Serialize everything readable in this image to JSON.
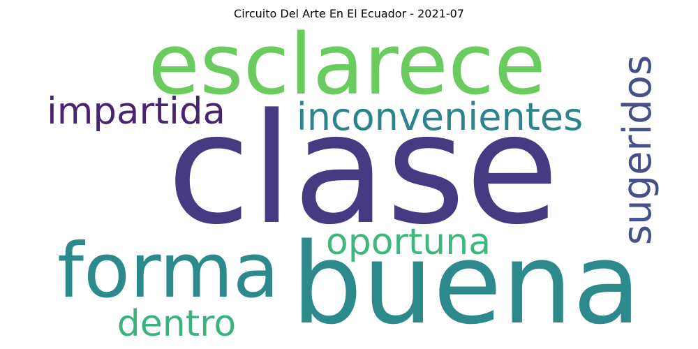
{
  "title": "Circuito Del Arte En El Ecuador - 2021-07",
  "words": [
    {
      "id": "clase",
      "text": "clase",
      "color": "#463a82"
    },
    {
      "id": "buena",
      "text": "buena",
      "color": "#2c8a8c"
    },
    {
      "id": "esclarece",
      "text": "esclarece",
      "color": "#6acc5f"
    },
    {
      "id": "forma",
      "text": "forma",
      "color": "#2c8a8c"
    },
    {
      "id": "inconvenientes",
      "text": "inconvenientes",
      "color": "#2b838c"
    },
    {
      "id": "impartida",
      "text": "impartida",
      "color": "#48266f"
    },
    {
      "id": "oportuna",
      "text": "oportuna",
      "color": "#3db77b"
    },
    {
      "id": "dentro",
      "text": "dentro",
      "color": "#3ab47c"
    },
    {
      "id": "sugeridos",
      "text": "sugeridos",
      "color": "#45508a"
    }
  ]
}
